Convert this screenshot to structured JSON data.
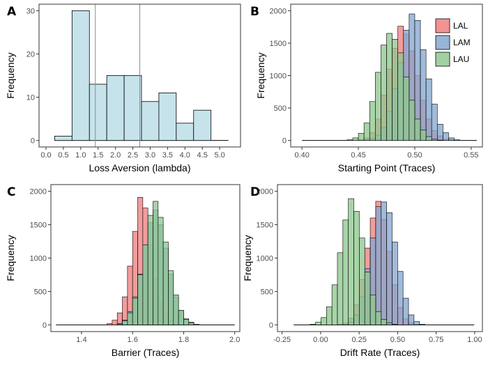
{
  "colors": {
    "LAL": "#f08080",
    "LAM": "#86a8d0",
    "LAU": "#90c890",
    "overlap_LAL_LAU": "#6f5a43",
    "overlap_LAM_LAU": "#4a7a55",
    "overlap_LAL_LAM": "#8e6a82",
    "overlap_all": "#3f6b42",
    "hist_fill": "#c6e3ec"
  },
  "chart_data": [
    {
      "type": "bar",
      "panel": "A",
      "xlabel": "Loss Aversion (lambda)",
      "ylabel": "Frequency",
      "xlim": [
        -0.2,
        5.6
      ],
      "ylim": [
        -1.5,
        31.5
      ],
      "xticks": [
        0.0,
        0.5,
        1.0,
        1.5,
        2.0,
        2.5,
        3.0,
        3.5,
        4.0,
        4.5,
        5.0
      ],
      "xtick_labels": [
        "0.0",
        "0.5",
        "1.0",
        "1.5",
        "2.0",
        "2.5",
        "3.0",
        "3.5",
        "4.0",
        "4.5",
        "5.0"
      ],
      "yticks": [
        0,
        10,
        20,
        30
      ],
      "ytick_labels": [
        "0",
        "10",
        "20",
        "30"
      ],
      "bin_edges": [
        0.25,
        0.75,
        1.25,
        1.75,
        2.25,
        2.75,
        3.25,
        3.75,
        4.25,
        4.75,
        5.25
      ],
      "values": [
        1,
        30,
        13,
        15,
        15,
        9,
        11,
        4,
        7,
        0
      ],
      "vlines": [
        1.42,
        2.7
      ],
      "grid": false,
      "legend": "none"
    },
    {
      "type": "bar",
      "panel": "B",
      "xlabel": "Starting Point (Traces)",
      "ylabel": "Frequency",
      "xlim": [
        0.39,
        0.56
      ],
      "ylim": [
        -100,
        2100
      ],
      "xticks": [
        0.4,
        0.45,
        0.5,
        0.55
      ],
      "xtick_labels": [
        "0.40",
        "0.45",
        "0.50",
        "0.55"
      ],
      "yticks": [
        0,
        500,
        1000,
        1500,
        2000
      ],
      "ytick_labels": [
        "0",
        "500",
        "1000",
        "1500",
        "2000"
      ],
      "bin_start": 0.4,
      "bin_width": 0.005,
      "series": [
        {
          "name": "LAL",
          "values": [
            0,
            0,
            0,
            0,
            0,
            0,
            0,
            0,
            0,
            0,
            10,
            40,
            120,
            330,
            700,
            1100,
            1420,
            1760,
            1640,
            1380,
            1000,
            620,
            330,
            150,
            70,
            20,
            10,
            0,
            0,
            0,
            0
          ]
        },
        {
          "name": "LAM",
          "values": [
            0,
            0,
            0,
            0,
            0,
            0,
            0,
            0,
            0,
            0,
            0,
            10,
            30,
            80,
            200,
            450,
            800,
            1200,
            1700,
            1950,
            1850,
            1400,
            950,
            560,
            250,
            120,
            40,
            10,
            0,
            0,
            0
          ]
        },
        {
          "name": "LAU",
          "values": [
            0,
            0,
            0,
            0,
            0,
            0,
            0,
            0,
            10,
            40,
            110,
            270,
            600,
            1050,
            1470,
            1650,
            1560,
            1350,
            980,
            620,
            330,
            160,
            60,
            20,
            5,
            0,
            0,
            0,
            0,
            0,
            0
          ]
        }
      ],
      "grid": false,
      "legend": "top-right"
    },
    {
      "type": "bar",
      "panel": "C",
      "xlabel": "Barrier (Traces)",
      "ylabel": "Frequency",
      "xlim": [
        1.28,
        2.02
      ],
      "ylim": [
        -100,
        2100
      ],
      "xticks": [
        1.4,
        1.6,
        1.8,
        2.0
      ],
      "xtick_labels": [
        "1.4",
        "1.6",
        "1.8",
        "2.0"
      ],
      "yticks": [
        0,
        500,
        1000,
        1500,
        2000
      ],
      "ytick_labels": [
        "0",
        "500",
        "1000",
        "1500",
        "2000"
      ],
      "bin_start": 1.3,
      "bin_width": 0.02,
      "series": [
        {
          "name": "LAL",
          "values": [
            0,
            0,
            0,
            0,
            0,
            0,
            0,
            0,
            0,
            0,
            20,
            70,
            180,
            420,
            880,
            1400,
            1910,
            1750,
            1200,
            700,
            340,
            160,
            70,
            20,
            0,
            0,
            0,
            0,
            0,
            0,
            0,
            0,
            0,
            0,
            0
          ]
        },
        {
          "name": "LAM",
          "values": [
            0,
            0,
            0,
            0,
            0,
            0,
            0,
            0,
            0,
            0,
            0,
            0,
            20,
            70,
            200,
            420,
            760,
            1200,
            1530,
            1720,
            1500,
            1150,
            760,
            420,
            210,
            90,
            40,
            0,
            0,
            0,
            0,
            0,
            0,
            0,
            0
          ]
        },
        {
          "name": "LAU",
          "values": [
            0,
            0,
            0,
            0,
            0,
            0,
            0,
            0,
            0,
            0,
            0,
            0,
            15,
            60,
            180,
            400,
            750,
            1200,
            1640,
            1850,
            1610,
            1240,
            810,
            450,
            220,
            80,
            30,
            10,
            0,
            0,
            0,
            0,
            0,
            0,
            0
          ]
        }
      ],
      "grid": false,
      "legend": "none"
    },
    {
      "type": "bar",
      "panel": "D",
      "xlabel": "Drift Rate (Traces)",
      "ylabel": "Frequency",
      "xlim": [
        -0.28,
        1.05
      ],
      "ylim": [
        -100,
        2100
      ],
      "xticks": [
        -0.25,
        0.0,
        0.25,
        0.5,
        0.75,
        1.0
      ],
      "xtick_labels": [
        "-0.25",
        "0.00",
        "0.25",
        "0.50",
        "0.75",
        "1.00"
      ],
      "yticks": [
        0,
        500,
        1000,
        1500,
        2000
      ],
      "ytick_labels": [
        "0",
        "500",
        "1000",
        "1500",
        "2000"
      ],
      "bin_start": -0.175,
      "bin_width": 0.0355,
      "series": [
        {
          "name": "LAL",
          "values": [
            0,
            0,
            0,
            0,
            0,
            0,
            0,
            0,
            10,
            30,
            100,
            300,
            680,
            1150,
            1600,
            1850,
            1580,
            1100,
            600,
            260,
            90,
            30,
            10,
            0,
            0,
            0,
            0,
            0,
            0,
            0,
            0,
            0,
            0
          ]
        },
        {
          "name": "LAM",
          "values": [
            0,
            0,
            0,
            0,
            0,
            0,
            0,
            0,
            0,
            10,
            40,
            150,
            420,
            840,
            1300,
            1770,
            1840,
            1680,
            1240,
            800,
            400,
            150,
            50,
            10,
            0,
            0,
            0,
            0,
            0,
            0,
            0,
            0,
            0
          ]
        },
        {
          "name": "LAU",
          "values": [
            0,
            0,
            0,
            10,
            40,
            110,
            270,
            600,
            1080,
            1570,
            1890,
            1700,
            1300,
            790,
            450,
            200,
            80,
            30,
            10,
            0,
            0,
            0,
            0,
            0,
            0,
            0,
            0,
            0,
            0,
            0,
            0,
            0,
            0
          ]
        }
      ],
      "grid": false,
      "legend": "none"
    }
  ],
  "panels": [
    {
      "label": "A",
      "xlabel": "Loss Aversion (lambda)",
      "ylabel": "Frequency"
    },
    {
      "label": "B",
      "xlabel": "Starting Point (Traces)",
      "ylabel": "Frequency"
    },
    {
      "label": "C",
      "xlabel": "Barrier (Traces)",
      "ylabel": "Frequency"
    },
    {
      "label": "D",
      "xlabel": "Drift Rate (Traces)",
      "ylabel": "Frequency"
    }
  ],
  "legend": {
    "items": [
      {
        "name": "LAL",
        "label": "LAL"
      },
      {
        "name": "LAM",
        "label": "LAM"
      },
      {
        "name": "LAU",
        "label": "LAU"
      }
    ]
  }
}
